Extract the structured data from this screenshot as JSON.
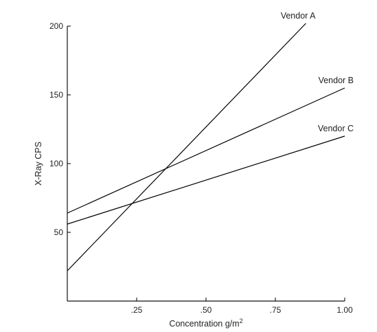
{
  "chart_data": {
    "type": "line",
    "title": "",
    "xlabel": "Concentration g/m",
    "xlabel_superscript": "2",
    "ylabel": "X-Ray CPS",
    "xlim": [
      0,
      1.0
    ],
    "ylim": [
      0,
      200
    ],
    "x_ticks": [
      0.25,
      0.5,
      0.75,
      1.0
    ],
    "x_tick_labels": [
      ".25",
      ".50",
      ".75",
      "1.00"
    ],
    "y_ticks": [
      50,
      100,
      150,
      200
    ],
    "y_tick_labels": [
      "50",
      "100",
      "150",
      "200"
    ],
    "grid": false,
    "legend": "none",
    "series": [
      {
        "name": "Vendor A",
        "x": [
          0,
          0.86
        ],
        "values": [
          22,
          202
        ]
      },
      {
        "name": "Vendor B",
        "x": [
          0,
          1.0
        ],
        "values": [
          64,
          155
        ]
      },
      {
        "name": "Vendor C",
        "x": [
          0,
          1.0
        ],
        "values": [
          56,
          120
        ]
      }
    ]
  }
}
